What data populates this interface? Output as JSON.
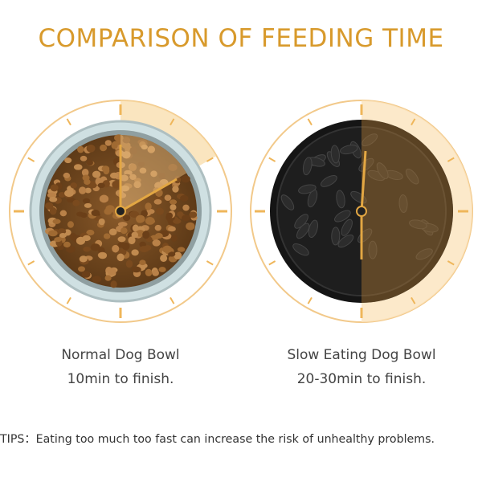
{
  "title": "COMPARISON OF FEEDING TIME",
  "colors": {
    "accent": "#d89a2c",
    "clock_tint": "#f6d8a6",
    "text": "#444444",
    "black_bowl": "#151515",
    "steel_bowl": "#9fb0b3"
  },
  "bowls": [
    {
      "name": "Normal Dog Bowl",
      "time": "10min to finish."
    },
    {
      "name": "Slow Eating Dog Bowl",
      "time": "20-30min to finish."
    }
  ],
  "tips": "TIPS：Eating too much too fast can increase the risk of unhealthy problems."
}
